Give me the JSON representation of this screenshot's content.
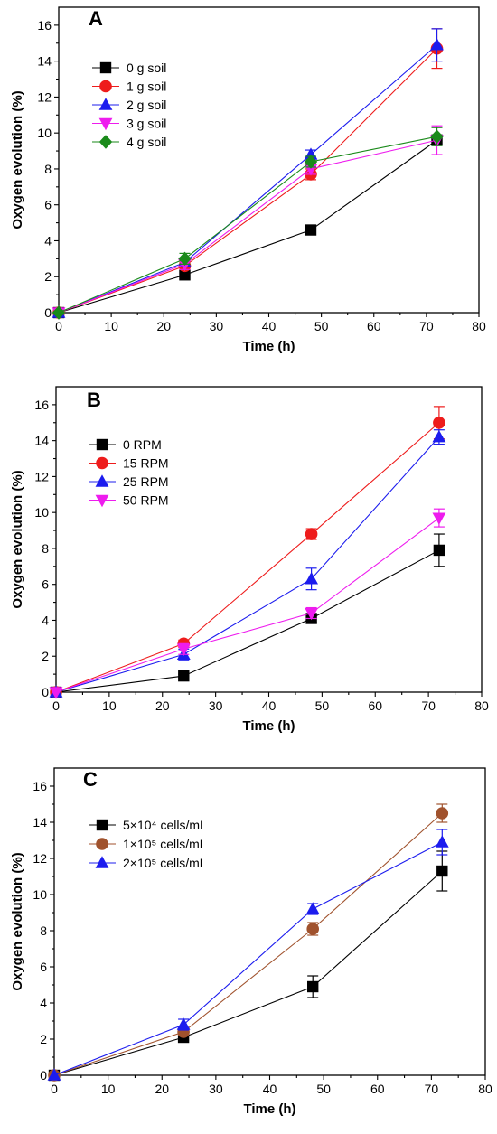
{
  "chart_data": [
    {
      "type": "line",
      "panel_label": "A",
      "xlabel": "Time (h)",
      "ylabel": "Oxygen evolution (%)",
      "xlim": [
        0,
        80
      ],
      "ylim": [
        0,
        17
      ],
      "xticks": [
        0,
        10,
        20,
        30,
        40,
        50,
        60,
        70,
        80
      ],
      "yticks": [
        0,
        2,
        4,
        6,
        8,
        10,
        12,
        14,
        16
      ],
      "legend_position": "left",
      "x": [
        0,
        24,
        48,
        72
      ],
      "series": [
        {
          "name": "0 g soil",
          "marker": "square",
          "color": "#000000",
          "values": [
            0,
            2.1,
            4.6,
            9.6
          ],
          "errors": [
            0,
            0.15,
            0.15,
            0.3
          ]
        },
        {
          "name": "1 g soil",
          "marker": "circle",
          "color": "#ee1c1c",
          "values": [
            0,
            2.6,
            7.7,
            14.7
          ],
          "errors": [
            0,
            0.2,
            0.3,
            1.1
          ]
        },
        {
          "name": "2 g soil",
          "marker": "triangle-up",
          "color": "#1c1cee",
          "values": [
            0,
            2.8,
            8.8,
            14.9
          ],
          "errors": [
            0,
            0.25,
            0.25,
            0.9
          ]
        },
        {
          "name": "3 g soil",
          "marker": "triangle-down",
          "color": "#ee1cee",
          "values": [
            0,
            2.7,
            8.0,
            9.6
          ],
          "errors": [
            0,
            0.3,
            0.3,
            0.8
          ]
        },
        {
          "name": "4 g soil",
          "marker": "diamond",
          "color": "#1a8a1a",
          "values": [
            0,
            3.0,
            8.4,
            9.8
          ],
          "errors": [
            0,
            0.3,
            0.3,
            0.5
          ]
        }
      ]
    },
    {
      "type": "line",
      "panel_label": "B",
      "xlabel": "Time (h)",
      "ylabel": "Oxygen evolution (%)",
      "xlim": [
        0,
        80
      ],
      "ylim": [
        0,
        17
      ],
      "xticks": [
        0,
        10,
        20,
        30,
        40,
        50,
        60,
        70,
        80
      ],
      "yticks": [
        0,
        2,
        4,
        6,
        8,
        10,
        12,
        14,
        16
      ],
      "legend_position": "left",
      "x": [
        0,
        24,
        48,
        72
      ],
      "series": [
        {
          "name": "0 RPM",
          "marker": "square",
          "color": "#000000",
          "values": [
            0,
            0.9,
            4.1,
            7.9
          ],
          "errors": [
            0,
            0.1,
            0.2,
            0.9
          ]
        },
        {
          "name": "15 RPM",
          "marker": "circle",
          "color": "#ee1c1c",
          "values": [
            0,
            2.7,
            8.8,
            15.0
          ],
          "errors": [
            0,
            0.2,
            0.3,
            0.9
          ]
        },
        {
          "name": "25 RPM",
          "marker": "triangle-up",
          "color": "#1c1cee",
          "values": [
            0,
            2.1,
            6.3,
            14.2
          ],
          "errors": [
            0,
            0.3,
            0.6,
            0.4
          ]
        },
        {
          "name": "50 RPM",
          "marker": "triangle-down",
          "color": "#ee1cee",
          "values": [
            0,
            2.4,
            4.4,
            9.7
          ],
          "errors": [
            0,
            0.3,
            0.3,
            0.5
          ]
        }
      ]
    },
    {
      "type": "line",
      "panel_label": "C",
      "xlabel": "Time (h)",
      "ylabel": "Oxygen evolution (%)",
      "xlim": [
        0,
        80
      ],
      "ylim": [
        0,
        17
      ],
      "xticks": [
        0,
        10,
        20,
        30,
        40,
        50,
        60,
        70,
        80
      ],
      "yticks": [
        0,
        2,
        4,
        6,
        8,
        10,
        12,
        14,
        16
      ],
      "legend_position": "left",
      "x": [
        0,
        24,
        48,
        72
      ],
      "series": [
        {
          "name": "5×10⁴ cells/mL",
          "marker": "square",
          "color": "#000000",
          "values": [
            0,
            2.1,
            4.9,
            11.3
          ],
          "errors": [
            0,
            0.15,
            0.6,
            1.1
          ]
        },
        {
          "name": "1×10⁵ cells/mL",
          "marker": "circle",
          "color": "#a0522d",
          "values": [
            0,
            2.4,
            8.1,
            14.5
          ],
          "errors": [
            0,
            0.2,
            0.35,
            0.5
          ]
        },
        {
          "name": "2×10⁵ cells/mL",
          "marker": "triangle-up",
          "color": "#1c1cee",
          "values": [
            0,
            2.8,
            9.2,
            12.9
          ],
          "errors": [
            0,
            0.3,
            0.3,
            0.7
          ]
        }
      ]
    }
  ]
}
